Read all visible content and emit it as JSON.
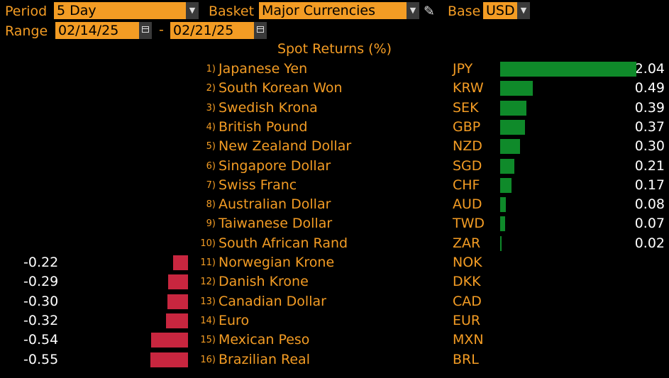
{
  "toolbar": {
    "period_label": "Period",
    "period_value": "5 Day",
    "basket_label": "Basket",
    "basket_value": "Major Currencies",
    "base_label": "Base",
    "base_value": "USD",
    "range_label": "Range",
    "range_start": "02/14/25",
    "range_end": "02/21/25",
    "range_separator": "-"
  },
  "chart_data": {
    "type": "bar",
    "title": "Spot Returns (%)",
    "orientation": "horizontal",
    "rows": [
      {
        "rank": "1)",
        "name": "Japanese Yen",
        "code": "JPY",
        "value": 2.04,
        "label": "2.04"
      },
      {
        "rank": "2)",
        "name": "South Korean Won",
        "code": "KRW",
        "value": 0.49,
        "label": "0.49"
      },
      {
        "rank": "3)",
        "name": "Swedish Krona",
        "code": "SEK",
        "value": 0.39,
        "label": "0.39"
      },
      {
        "rank": "4)",
        "name": "British Pound",
        "code": "GBP",
        "value": 0.37,
        "label": "0.37"
      },
      {
        "rank": "5)",
        "name": "New Zealand Dollar",
        "code": "NZD",
        "value": 0.3,
        "label": "0.30"
      },
      {
        "rank": "6)",
        "name": "Singapore Dollar",
        "code": "SGD",
        "value": 0.21,
        "label": "0.21"
      },
      {
        "rank": "7)",
        "name": "Swiss Franc",
        "code": "CHF",
        "value": 0.17,
        "label": "0.17"
      },
      {
        "rank": "8)",
        "name": "Australian Dollar",
        "code": "AUD",
        "value": 0.08,
        "label": "0.08"
      },
      {
        "rank": "9)",
        "name": "Taiwanese Dollar",
        "code": "TWD",
        "value": 0.07,
        "label": "0.07"
      },
      {
        "rank": "10)",
        "name": "South African Rand",
        "code": "ZAR",
        "value": 0.02,
        "label": "0.02"
      },
      {
        "rank": "11)",
        "name": "Norwegian Krone",
        "code": "NOK",
        "value": -0.22,
        "label": "-0.22"
      },
      {
        "rank": "12)",
        "name": "Danish Krone",
        "code": "DKK",
        "value": -0.29,
        "label": "-0.29"
      },
      {
        "rank": "13)",
        "name": "Canadian Dollar",
        "code": "CAD",
        "value": -0.3,
        "label": "-0.30"
      },
      {
        "rank": "14)",
        "name": "Euro",
        "code": "EUR",
        "value": -0.32,
        "label": "-0.32"
      },
      {
        "rank": "15)",
        "name": "Mexican Peso",
        "code": "MXN",
        "value": -0.54,
        "label": "-0.54"
      },
      {
        "rank": "16)",
        "name": "Brazilian Real",
        "code": "BRL",
        "value": -0.55,
        "label": "-0.55"
      }
    ],
    "colors": {
      "positive": "#0f8a2a",
      "negative": "#c8263f",
      "text": "#f39c24"
    }
  }
}
